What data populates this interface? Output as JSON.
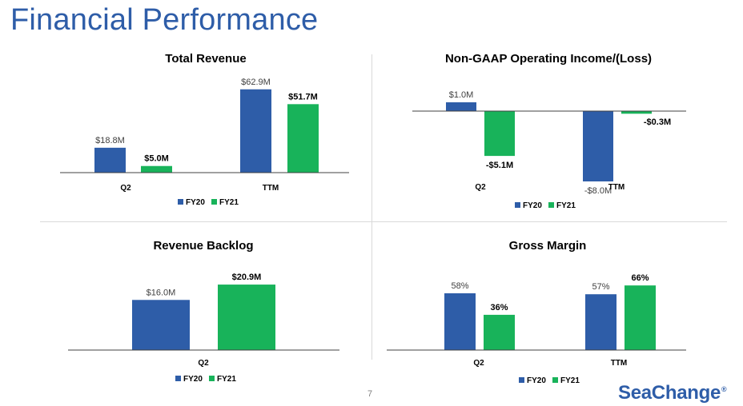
{
  "title": "Financial Performance",
  "page_number": "7",
  "logo": {
    "text": "SeaChange",
    "mark": "®"
  },
  "colors": {
    "fy20": "#2E5DA8",
    "fy21": "#18B35A",
    "title": "#2E5DA8",
    "axis": "#404040"
  },
  "chart_data": [
    {
      "type": "bar",
      "title": "Total Revenue",
      "categories": [
        "Q2",
        "TTM"
      ],
      "series": [
        {
          "name": "FY20",
          "values": [
            18.8,
            62.9
          ],
          "labels": [
            "$18.8M",
            "$62.9M"
          ]
        },
        {
          "name": "FY21",
          "values": [
            5.0,
            51.7
          ],
          "labels": [
            "$5.0M",
            "$51.7M"
          ]
        }
      ],
      "ylim": [
        0,
        70
      ],
      "legend": "bottom"
    },
    {
      "type": "bar",
      "title": "Non-GAAP Operating Income/(Loss)",
      "categories": [
        "Q2",
        "TTM"
      ],
      "series": [
        {
          "name": "FY20",
          "values": [
            1.0,
            -8.0
          ],
          "labels": [
            "$1.0M",
            "-$8.0M"
          ]
        },
        {
          "name": "FY21",
          "values": [
            -5.1,
            -0.3
          ],
          "labels": [
            "-$5.1M",
            "-$0.3M"
          ]
        }
      ],
      "ylim": [
        -10,
        2
      ],
      "legend": "bottom"
    },
    {
      "type": "bar",
      "title": "Revenue Backlog",
      "categories": [
        "Q2"
      ],
      "series": [
        {
          "name": "FY20",
          "values": [
            16.0
          ],
          "labels": [
            "$16.0M"
          ]
        },
        {
          "name": "FY21",
          "values": [
            20.9
          ],
          "labels": [
            "$20.9M"
          ]
        }
      ],
      "ylim": [
        0,
        25
      ],
      "legend": "bottom"
    },
    {
      "type": "bar",
      "title": "Gross Margin",
      "categories": [
        "Q2",
        "TTM"
      ],
      "series": [
        {
          "name": "FY20",
          "values": [
            58,
            57
          ],
          "labels": [
            "58%",
            "57%"
          ]
        },
        {
          "name": "FY21",
          "values": [
            36,
            66
          ],
          "labels": [
            "36%",
            "66%"
          ]
        }
      ],
      "ylim": [
        0,
        80
      ],
      "legend": "bottom"
    }
  ]
}
